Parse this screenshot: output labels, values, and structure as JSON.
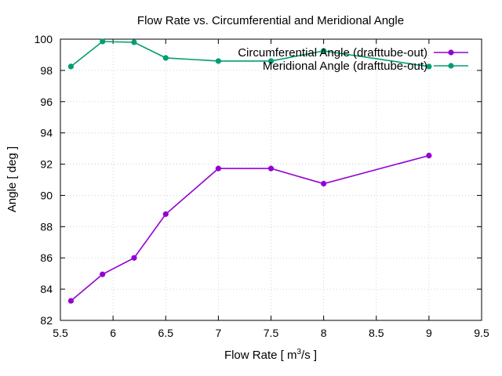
{
  "chart_data": {
    "type": "line",
    "title": "Flow Rate vs. Circumferential and Meridional Angle",
    "xlabel": "Flow Rate [ m³/s ]",
    "xlabel_parts": {
      "before": "Flow Rate [ m",
      "sup": "3",
      "after": "/s ]"
    },
    "ylabel": "Angle [ deg ]",
    "xlim": [
      5.5,
      9.5
    ],
    "ylim": [
      82,
      100
    ],
    "xticks": [
      "5.5",
      "6",
      "6.5",
      "7",
      "7.5",
      "8",
      "8.5",
      "9",
      "9.5"
    ],
    "yticks": [
      "82",
      "84",
      "86",
      "88",
      "90",
      "92",
      "94",
      "96",
      "98",
      "100"
    ],
    "grid": true,
    "legend_position": "top-right",
    "series": [
      {
        "name": "Circumferential Angle (drafttube-out)",
        "color": "#9400d3",
        "x": [
          5.6,
          5.9,
          6.2,
          6.5,
          7.0,
          7.5,
          8.0,
          9.0
        ],
        "y": [
          83.25,
          84.95,
          86.0,
          88.8,
          91.72,
          91.72,
          90.75,
          92.55
        ]
      },
      {
        "name": "Meridional Angle (drafttube-out)",
        "color": "#009e73",
        "x": [
          5.6,
          5.9,
          6.2,
          6.5,
          7.0,
          7.5,
          8.0,
          9.0
        ],
        "y": [
          98.25,
          99.85,
          99.8,
          98.8,
          98.6,
          98.6,
          99.25,
          98.25
        ]
      }
    ]
  }
}
